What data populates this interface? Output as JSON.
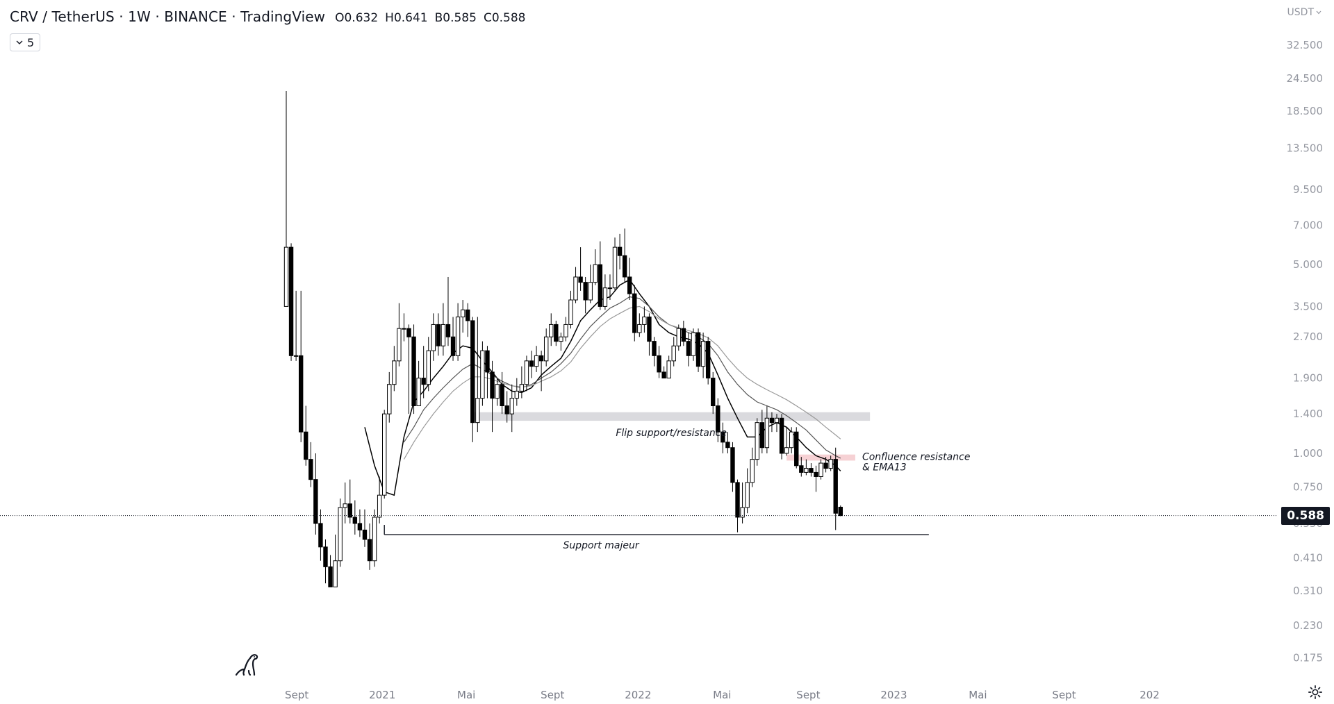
{
  "header": {
    "title": "CRV / TetherUS · 1W · BINANCE · TradingView",
    "ohlc": {
      "open": "O0.632",
      "high": "H0.641",
      "low": "B0.585",
      "close": "C0.588"
    },
    "indicator_count": "5"
  },
  "currency": "USDT",
  "last_price_label": "0.588",
  "colors": {
    "candle_up": "#ffffff",
    "candle_down": "#000000",
    "candle_outline": "#000000",
    "ema_primary": "#000000",
    "ema_secondary": "#555555",
    "ema_tertiary": "#999999",
    "flip_zone": "#d6d6da",
    "confluence_zone": "#f3c1c6",
    "price_label_bg": "#131722"
  },
  "chart_data": {
    "type": "candlestick",
    "scale": "log",
    "ylim": [
      0.14,
      40
    ],
    "yticks": [
      "32.500",
      "24.500",
      "18.500",
      "13.500",
      "9.500",
      "7.000",
      "5.000",
      "3.500",
      "2.700",
      "1.900",
      "1.400",
      "1.000",
      "0.750",
      "0.550",
      "0.410",
      "0.310",
      "0.230",
      "0.175"
    ],
    "ytick_values": [
      32.5,
      24.5,
      18.5,
      13.5,
      9.5,
      7.0,
      5.0,
      3.5,
      2.7,
      1.9,
      1.4,
      1.0,
      0.75,
      0.55,
      0.41,
      0.31,
      0.23,
      0.175
    ],
    "xticks": [
      "Sept",
      "2021",
      "Mai",
      "Sept",
      "2022",
      "Mai",
      "Sept",
      "2023",
      "Mai",
      "Sept",
      "202"
    ],
    "xtick_dates": [
      "2020-09-01",
      "2021-01-01",
      "2021-05-01",
      "2021-09-01",
      "2022-01-01",
      "2022-05-01",
      "2022-09-01",
      "2023-01-01",
      "2023-05-01",
      "2023-09-01",
      "2024-01-01"
    ],
    "first_candle_date": "2020-08-17",
    "interval_days": 7,
    "candles": [
      [
        3.5,
        5.8,
        22.0,
        3.5
      ],
      [
        5.8,
        2.3,
        6.0,
        2.2
      ],
      [
        2.3,
        2.3,
        4.0,
        2.2
      ],
      [
        2.3,
        1.2,
        4.0,
        1.1
      ],
      [
        1.2,
        0.95,
        1.5,
        0.9
      ],
      [
        0.95,
        0.8,
        1.1,
        0.75
      ],
      [
        0.8,
        0.55,
        1.0,
        0.5
      ],
      [
        0.55,
        0.45,
        0.62,
        0.4
      ],
      [
        0.45,
        0.38,
        0.48,
        0.33
      ],
      [
        0.38,
        0.32,
        0.42,
        0.32
      ],
      [
        0.32,
        0.4,
        0.5,
        0.32
      ],
      [
        0.4,
        0.63,
        0.68,
        0.38
      ],
      [
        0.63,
        0.65,
        0.78,
        0.55
      ],
      [
        0.65,
        0.58,
        0.8,
        0.55
      ],
      [
        0.58,
        0.55,
        0.67,
        0.5
      ],
      [
        0.55,
        0.52,
        0.62,
        0.49
      ],
      [
        0.52,
        0.48,
        0.62,
        0.45
      ],
      [
        0.48,
        0.4,
        0.55,
        0.37
      ],
      [
        0.4,
        0.58,
        0.62,
        0.38
      ],
      [
        0.58,
        0.7,
        0.82,
        0.55
      ],
      [
        0.7,
        1.4,
        1.45,
        0.68
      ],
      [
        1.4,
        1.8,
        2.0,
        1.3
      ],
      [
        1.8,
        2.2,
        2.5,
        1.7
      ],
      [
        2.2,
        2.9,
        3.6,
        2.1
      ],
      [
        2.9,
        2.9,
        3.3,
        2.6
      ],
      [
        2.9,
        2.7,
        3.0,
        1.4
      ],
      [
        2.7,
        1.5,
        3.0,
        1.4
      ],
      [
        1.5,
        1.9,
        2.2,
        1.5
      ],
      [
        1.9,
        1.8,
        2.5,
        1.6
      ],
      [
        1.8,
        2.4,
        2.7,
        1.7
      ],
      [
        2.4,
        3.0,
        3.3,
        2.2
      ],
      [
        3.0,
        2.5,
        3.3,
        2.3
      ],
      [
        2.5,
        3.0,
        3.6,
        2.3
      ],
      [
        3.0,
        2.7,
        4.5,
        2.5
      ],
      [
        2.7,
        2.3,
        3.2,
        2.2
      ],
      [
        2.3,
        3.2,
        3.6,
        2.2
      ],
      [
        3.2,
        3.4,
        3.7,
        2.8
      ],
      [
        3.4,
        3.1,
        3.6,
        2.7
      ],
      [
        3.1,
        1.3,
        3.2,
        1.1
      ],
      [
        1.3,
        1.6,
        3.2,
        1.2
      ],
      [
        1.6,
        2.4,
        2.6,
        1.5
      ],
      [
        2.4,
        2.0,
        2.5,
        1.6
      ],
      [
        2.0,
        1.6,
        2.2,
        1.2
      ],
      [
        1.6,
        1.8,
        1.9,
        1.5
      ],
      [
        1.8,
        1.5,
        2.0,
        1.4
      ],
      [
        1.5,
        1.4,
        1.7,
        1.3
      ],
      [
        1.4,
        1.6,
        1.8,
        1.2
      ],
      [
        1.6,
        1.7,
        1.9,
        1.5
      ],
      [
        1.7,
        1.8,
        2.1,
        1.6
      ],
      [
        1.8,
        2.2,
        2.3,
        1.7
      ],
      [
        2.2,
        2.1,
        2.4,
        1.9
      ],
      [
        2.1,
        2.3,
        2.5,
        2.0
      ],
      [
        2.3,
        2.2,
        2.4,
        1.7
      ],
      [
        2.2,
        2.7,
        2.9,
        2.1
      ],
      [
        2.7,
        3.0,
        3.3,
        2.5
      ],
      [
        3.0,
        2.6,
        3.1,
        2.5
      ],
      [
        2.6,
        2.7,
        2.8,
        2.4
      ],
      [
        2.7,
        3.0,
        3.2,
        2.6
      ],
      [
        3.0,
        3.7,
        4.0,
        2.9
      ],
      [
        3.7,
        4.5,
        4.9,
        3.6
      ],
      [
        4.5,
        4.3,
        5.8,
        4.0
      ],
      [
        4.3,
        3.7,
        4.5,
        3.3
      ],
      [
        3.7,
        4.3,
        5.0,
        3.6
      ],
      [
        4.3,
        5.0,
        5.7,
        4.2
      ],
      [
        5.0,
        3.5,
        6.1,
        3.4
      ],
      [
        3.5,
        4.1,
        4.6,
        3.4
      ],
      [
        4.1,
        4.1,
        4.6,
        3.7
      ],
      [
        4.1,
        5.8,
        6.3,
        4.0
      ],
      [
        5.8,
        5.4,
        6.5,
        4.8
      ],
      [
        5.4,
        4.5,
        6.8,
        4.3
      ],
      [
        4.5,
        3.9,
        5.3,
        3.7
      ],
      [
        3.9,
        2.8,
        4.2,
        2.6
      ],
      [
        2.8,
        3.0,
        3.3,
        2.7
      ],
      [
        3.0,
        3.2,
        3.5,
        2.8
      ],
      [
        3.2,
        2.6,
        3.3,
        2.3
      ],
      [
        2.6,
        2.3,
        2.7,
        2.1
      ],
      [
        2.3,
        2.0,
        2.5,
        1.9
      ],
      [
        2.0,
        1.9,
        2.1,
        1.9
      ],
      [
        1.9,
        2.2,
        2.3,
        1.9
      ],
      [
        2.2,
        2.5,
        2.7,
        2.1
      ],
      [
        2.5,
        2.9,
        3.0,
        2.4
      ],
      [
        2.9,
        2.6,
        3.1,
        2.5
      ],
      [
        2.6,
        2.3,
        2.8,
        2.1
      ],
      [
        2.3,
        2.8,
        2.9,
        2.2
      ],
      [
        2.8,
        2.1,
        2.9,
        2.0
      ],
      [
        2.1,
        2.6,
        2.8,
        1.9
      ],
      [
        2.6,
        1.9,
        2.7,
        1.8
      ],
      [
        1.9,
        1.5,
        2.0,
        1.4
      ],
      [
        1.5,
        1.2,
        1.6,
        1.1
      ],
      [
        1.2,
        1.1,
        1.3,
        1.0
      ],
      [
        1.1,
        1.05,
        1.2,
        1.0
      ],
      [
        1.05,
        0.78,
        1.1,
        0.72
      ],
      [
        0.78,
        0.58,
        0.8,
        0.51
      ],
      [
        0.58,
        0.63,
        0.78,
        0.55
      ],
      [
        0.63,
        0.78,
        0.88,
        0.6
      ],
      [
        0.78,
        0.95,
        1.05,
        0.75
      ],
      [
        0.95,
        1.3,
        1.35,
        0.9
      ],
      [
        1.3,
        1.05,
        1.45,
        1.0
      ],
      [
        1.05,
        1.35,
        1.5,
        1.0
      ],
      [
        1.35,
        1.3,
        1.42,
        1.2
      ],
      [
        1.3,
        1.35,
        1.4,
        1.2
      ],
      [
        1.35,
        1.0,
        1.4,
        0.95
      ],
      [
        1.0,
        1.05,
        1.25,
        0.98
      ],
      [
        1.05,
        1.2,
        1.25,
        1.0
      ],
      [
        1.2,
        0.9,
        1.25,
        0.88
      ],
      [
        0.9,
        0.85,
        0.97,
        0.82
      ],
      [
        0.85,
        0.88,
        0.95,
        0.83
      ],
      [
        0.88,
        0.85,
        0.92,
        0.82
      ],
      [
        0.85,
        0.82,
        0.9,
        0.72
      ],
      [
        0.82,
        0.92,
        0.95,
        0.8
      ],
      [
        0.92,
        0.88,
        0.97,
        0.85
      ],
      [
        0.88,
        0.95,
        0.98,
        0.86
      ],
      [
        0.95,
        0.6,
        1.05,
        0.52
      ],
      [
        0.632,
        0.588,
        0.641,
        0.585
      ]
    ],
    "ema_series": [
      {
        "color": "#000000",
        "points": [
          [
            16,
            1.25
          ],
          [
            18,
            0.9
          ],
          [
            20,
            0.72
          ],
          [
            22,
            0.7
          ],
          [
            24,
            1.15
          ],
          [
            26,
            1.55
          ],
          [
            28,
            1.7
          ],
          [
            30,
            1.9
          ],
          [
            32,
            2.1
          ],
          [
            34,
            2.35
          ],
          [
            36,
            2.5
          ],
          [
            38,
            2.45
          ],
          [
            40,
            2.2
          ],
          [
            42,
            2.0
          ],
          [
            44,
            1.8
          ],
          [
            46,
            1.7
          ],
          [
            48,
            1.68
          ],
          [
            50,
            1.75
          ],
          [
            52,
            1.95
          ],
          [
            54,
            2.1
          ],
          [
            56,
            2.25
          ],
          [
            58,
            2.6
          ],
          [
            60,
            3.1
          ],
          [
            62,
            3.4
          ],
          [
            64,
            3.7
          ],
          [
            66,
            3.8
          ],
          [
            68,
            4.2
          ],
          [
            70,
            4.4
          ],
          [
            72,
            3.9
          ],
          [
            74,
            3.5
          ],
          [
            76,
            3.0
          ],
          [
            78,
            2.8
          ],
          [
            80,
            2.7
          ],
          [
            82,
            2.65
          ],
          [
            84,
            2.55
          ],
          [
            86,
            2.35
          ],
          [
            88,
            1.95
          ],
          [
            90,
            1.6
          ],
          [
            92,
            1.35
          ],
          [
            94,
            1.15
          ],
          [
            96,
            1.15
          ],
          [
            98,
            1.25
          ],
          [
            100,
            1.3
          ],
          [
            102,
            1.25
          ],
          [
            104,
            1.15
          ],
          [
            106,
            1.05
          ],
          [
            108,
            0.98
          ],
          [
            110,
            0.95
          ],
          [
            112,
            0.9
          ],
          [
            113,
            0.86
          ]
        ]
      },
      {
        "color": "#555555",
        "points": [
          [
            24,
            1.1
          ],
          [
            26,
            1.25
          ],
          [
            28,
            1.45
          ],
          [
            30,
            1.6
          ],
          [
            32,
            1.75
          ],
          [
            34,
            1.9
          ],
          [
            36,
            2.05
          ],
          [
            38,
            2.15
          ],
          [
            40,
            2.05
          ],
          [
            42,
            1.95
          ],
          [
            44,
            1.85
          ],
          [
            46,
            1.78
          ],
          [
            48,
            1.75
          ],
          [
            50,
            1.8
          ],
          [
            52,
            1.9
          ],
          [
            54,
            2.0
          ],
          [
            56,
            2.15
          ],
          [
            58,
            2.35
          ],
          [
            60,
            2.65
          ],
          [
            62,
            2.95
          ],
          [
            64,
            3.2
          ],
          [
            66,
            3.45
          ],
          [
            68,
            3.6
          ],
          [
            70,
            3.8
          ],
          [
            72,
            3.75
          ],
          [
            74,
            3.5
          ],
          [
            76,
            3.2
          ],
          [
            78,
            3.0
          ],
          [
            80,
            2.9
          ],
          [
            82,
            2.8
          ],
          [
            84,
            2.7
          ],
          [
            86,
            2.55
          ],
          [
            88,
            2.3
          ],
          [
            90,
            2.0
          ],
          [
            92,
            1.8
          ],
          [
            94,
            1.65
          ],
          [
            96,
            1.55
          ],
          [
            98,
            1.5
          ],
          [
            100,
            1.45
          ],
          [
            102,
            1.38
          ],
          [
            104,
            1.3
          ],
          [
            106,
            1.22
          ],
          [
            108,
            1.12
          ],
          [
            110,
            1.03
          ],
          [
            112,
            0.98
          ],
          [
            113,
            0.96
          ]
        ]
      },
      {
        "color": "#999999",
        "points": [
          [
            24,
            0.95
          ],
          [
            26,
            1.1
          ],
          [
            28,
            1.25
          ],
          [
            30,
            1.4
          ],
          [
            32,
            1.55
          ],
          [
            34,
            1.7
          ],
          [
            36,
            1.82
          ],
          [
            38,
            1.92
          ],
          [
            40,
            1.92
          ],
          [
            42,
            1.88
          ],
          [
            44,
            1.82
          ],
          [
            46,
            1.78
          ],
          [
            48,
            1.76
          ],
          [
            50,
            1.78
          ],
          [
            52,
            1.85
          ],
          [
            54,
            1.92
          ],
          [
            56,
            2.02
          ],
          [
            58,
            2.18
          ],
          [
            60,
            2.45
          ],
          [
            62,
            2.7
          ],
          [
            64,
            2.95
          ],
          [
            66,
            3.15
          ],
          [
            68,
            3.3
          ],
          [
            70,
            3.45
          ],
          [
            72,
            3.5
          ],
          [
            74,
            3.35
          ],
          [
            76,
            3.15
          ],
          [
            78,
            3.0
          ],
          [
            80,
            2.92
          ],
          [
            82,
            2.85
          ],
          [
            84,
            2.78
          ],
          [
            86,
            2.68
          ],
          [
            88,
            2.5
          ],
          [
            90,
            2.25
          ],
          [
            92,
            2.05
          ],
          [
            94,
            1.9
          ],
          [
            96,
            1.8
          ],
          [
            98,
            1.72
          ],
          [
            100,
            1.65
          ],
          [
            102,
            1.58
          ],
          [
            104,
            1.5
          ],
          [
            106,
            1.42
          ],
          [
            108,
            1.34
          ],
          [
            110,
            1.25
          ],
          [
            112,
            1.17
          ],
          [
            113,
            1.13
          ]
        ]
      }
    ],
    "zones": [
      {
        "label": "Flip support/resistance",
        "from_index": 38,
        "to_index": 119,
        "y_low": 1.32,
        "y_high": 1.42,
        "color": "#d6d6da"
      },
      {
        "label": "Confluence resistance\n& EMA13",
        "from_index": 102,
        "to_index": 116,
        "y_low": 0.94,
        "y_high": 0.99,
        "color": "#f3c1c6"
      }
    ],
    "support_line": {
      "label": "Support majeur",
      "from_index": 20,
      "to_index": 131,
      "y": 0.5
    },
    "last_price": 0.588
  }
}
